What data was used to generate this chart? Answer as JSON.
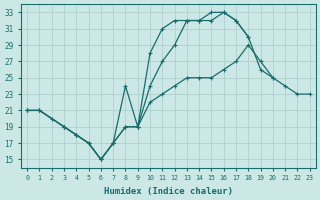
{
  "xlabel": "Humidex (Indice chaleur)",
  "background_color": "#cce8e6",
  "line_color": "#1a6b6b",
  "grid_color": "#aed0cc",
  "xlim": [
    -0.5,
    23.5
  ],
  "ylim": [
    14.0,
    34.0
  ],
  "xticks": [
    0,
    1,
    2,
    3,
    4,
    5,
    6,
    7,
    8,
    9,
    10,
    11,
    12,
    13,
    14,
    15,
    16,
    17,
    18,
    19,
    20,
    21,
    22,
    23
  ],
  "yticks": [
    15,
    17,
    19,
    21,
    23,
    25,
    27,
    29,
    31,
    33
  ],
  "lines": [
    {
      "x": [
        0,
        1,
        3,
        4,
        5,
        6,
        7,
        8,
        9,
        10,
        11,
        12,
        13,
        14,
        15,
        16,
        17,
        18
      ],
      "y": [
        21,
        21,
        19,
        18,
        17,
        15,
        17,
        24,
        19,
        28,
        31,
        32,
        32,
        32,
        33,
        33,
        32,
        30
      ]
    },
    {
      "x": [
        0,
        1,
        3,
        4,
        5,
        6,
        7,
        8,
        9,
        10,
        11,
        12,
        13,
        14,
        15,
        16,
        17,
        18,
        19,
        20
      ],
      "y": [
        21,
        21,
        19,
        18,
        17,
        15,
        17,
        19,
        19,
        24,
        27,
        29,
        32,
        32,
        32,
        33,
        32,
        30,
        26,
        25
      ]
    },
    {
      "x": [
        0,
        1,
        2,
        3,
        4,
        5,
        6,
        7,
        8,
        9,
        10,
        11,
        12,
        13,
        14,
        15,
        16,
        17,
        18,
        19,
        20,
        21,
        22,
        23
      ],
      "y": [
        21,
        21,
        20,
        19,
        18,
        17,
        15,
        17,
        19,
        19,
        22,
        23,
        24,
        25,
        25,
        25,
        26,
        27,
        29,
        27,
        25,
        24,
        23,
        23
      ]
    }
  ]
}
